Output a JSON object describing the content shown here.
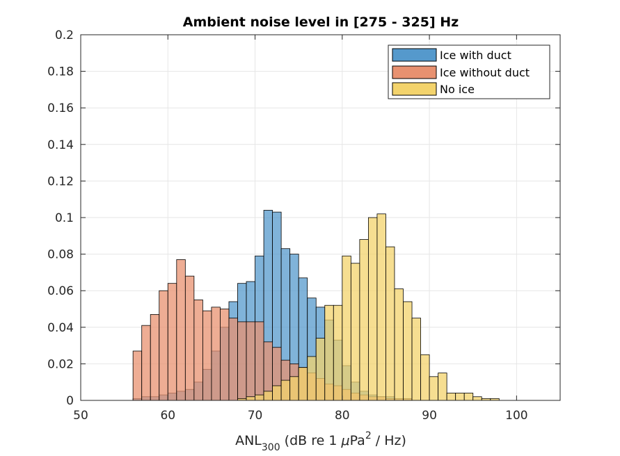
{
  "chart_data": {
    "type": "histogram",
    "title": "Ambient noise level in [275 - 325] Hz",
    "xlabel": {
      "main": "ANL",
      "sub": "300",
      "rest_prefix": " (dB re 1 ",
      "mu": "μ",
      "pa": "Pa",
      "sup": "2",
      "rest_suffix": " / Hz)"
    },
    "ylabel": "",
    "xlim": [
      50,
      105
    ],
    "ylim": [
      0,
      0.2
    ],
    "xticks": [
      "50",
      "60",
      "70",
      "80",
      "90",
      "100"
    ],
    "xtick_values": [
      50,
      60,
      70,
      80,
      90,
      100
    ],
    "yticks": [
      "0",
      "0.02",
      "0.04",
      "0.06",
      "0.08",
      "0.1",
      "0.12",
      "0.14",
      "0.16",
      "0.18",
      "0.2"
    ],
    "ytick_values": [
      0,
      0.02,
      0.04,
      0.06,
      0.08,
      0.1,
      0.12,
      0.14,
      0.16,
      0.18,
      0.2
    ],
    "grid": true,
    "legend_position": "top-right",
    "bin_edges_start": 56,
    "bin_width": 1,
    "series": [
      {
        "name": "Ice with duct",
        "color": "#0072BD",
        "face_color": "#5599cc",
        "values": [
          0.001,
          0.002,
          0.002,
          0.003,
          0.004,
          0.005,
          0.006,
          0.01,
          0.017,
          0.027,
          0.04,
          0.054,
          0.064,
          0.065,
          0.079,
          0.104,
          0.103,
          0.083,
          0.08,
          0.067,
          0.056,
          0.051,
          0.044,
          0.033,
          0.019,
          0.01,
          0.005,
          0.003,
          0.002,
          0.002,
          0.001,
          0.001,
          0.0,
          0.0,
          0.0,
          0.0,
          0.0,
          0.0,
          0.0,
          0.0,
          0.0,
          0.0,
          0.0,
          0.0,
          0.0,
          0.0,
          0.0,
          0.0,
          0.0
        ]
      },
      {
        "name": "Ice without duct",
        "color": "#D95319",
        "face_color": "#e89170",
        "values": [
          0.027,
          0.041,
          0.047,
          0.06,
          0.064,
          0.077,
          0.068,
          0.055,
          0.049,
          0.051,
          0.05,
          0.045,
          0.043,
          0.043,
          0.043,
          0.032,
          0.029,
          0.022,
          0.02,
          0.018,
          0.015,
          0.012,
          0.009,
          0.008,
          0.006,
          0.004,
          0.003,
          0.002,
          0.002,
          0.001,
          0.001,
          0.001,
          0.0,
          0.0,
          0.0,
          0.0,
          0.0,
          0.0,
          0.0,
          0.0,
          0.0,
          0.0,
          0.0,
          0.0,
          0.0,
          0.0,
          0.0,
          0.0,
          0.0
        ]
      },
      {
        "name": "No ice",
        "color": "#EDB120",
        "face_color": "#f3d36c",
        "values": [
          0.0,
          0.0,
          0.0,
          0.0,
          0.0,
          0.0,
          0.0,
          0.0,
          0.0,
          0.0,
          0.0,
          0.0,
          0.001,
          0.002,
          0.003,
          0.005,
          0.008,
          0.011,
          0.013,
          0.018,
          0.024,
          0.034,
          0.052,
          0.052,
          0.079,
          0.075,
          0.088,
          0.1,
          0.102,
          0.084,
          0.061,
          0.054,
          0.045,
          0.025,
          0.013,
          0.015,
          0.004,
          0.004,
          0.004,
          0.002,
          0.001,
          0.001,
          0.0,
          0.0,
          0.0,
          0.0,
          0.0,
          0.0,
          0.0
        ]
      }
    ]
  }
}
